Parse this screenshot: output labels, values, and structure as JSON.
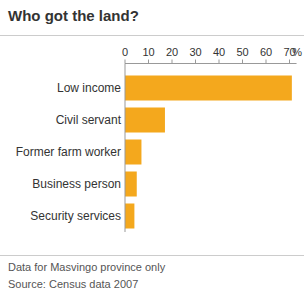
{
  "chart_data": {
    "type": "bar",
    "orientation": "horizontal",
    "title": "Who got the land?",
    "x_label": "%",
    "categories": [
      "Low income",
      "Civil servant",
      "Former farm worker",
      "Business person",
      "Security services"
    ],
    "values": [
      71,
      17,
      7,
      5,
      4
    ],
    "color": "#f4a81d",
    "xlim": [
      0,
      73
    ],
    "xticks": [
      0,
      10,
      20,
      30,
      40,
      50,
      60,
      70
    ],
    "grid": false,
    "footnote": "Data for Masvingo province only",
    "source": "Source: Census data 2007"
  }
}
